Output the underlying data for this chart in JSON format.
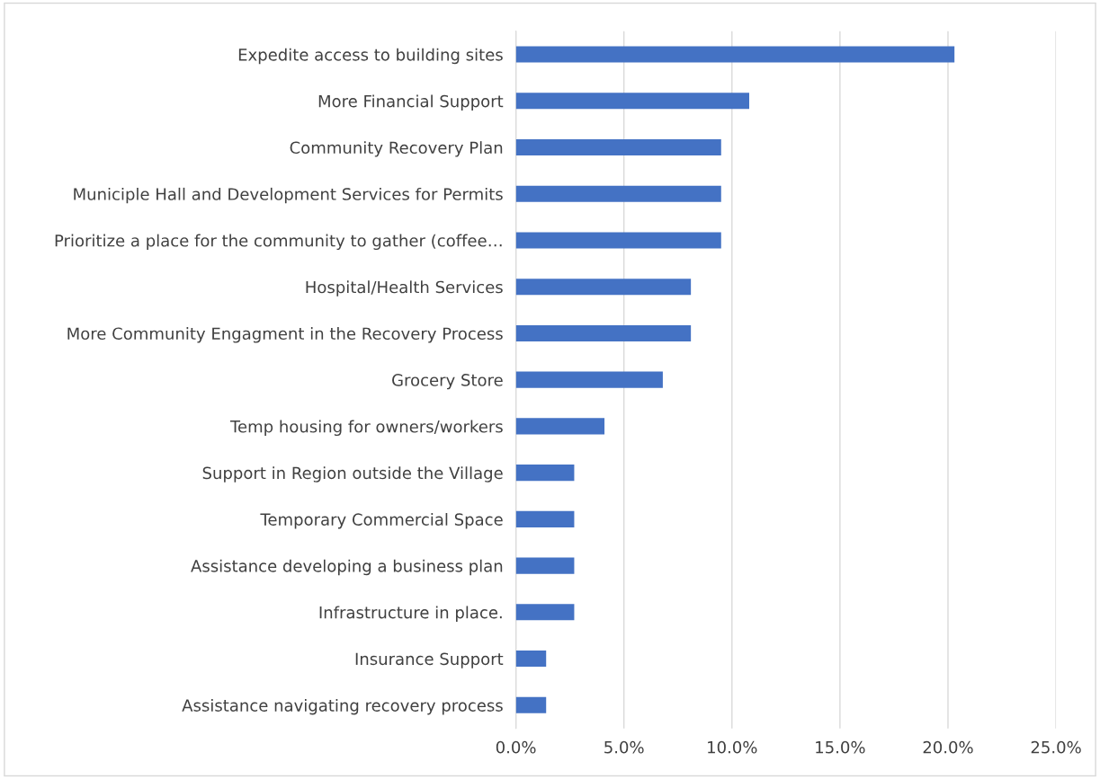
{
  "chart_data": {
    "type": "bar",
    "orientation": "horizontal",
    "categories": [
      "Expedite access to building sites",
      "More Financial Support",
      "Community Recovery Plan",
      "Municiple Hall and Development Services for Permits",
      "Prioritize a place for the community to gather (coffee…",
      "Hospital/Health Services",
      "More Community Engagment in the Recovery Process",
      "Grocery Store",
      "Temp housing for owners/workers",
      "Support in Region outside the Village",
      "Temporary Commercial Space",
      "Assistance developing a business plan",
      "Infrastructure in place.",
      "Insurance Support",
      "Assistance navigating recovery process"
    ],
    "values": [
      20.3,
      10.8,
      9.5,
      9.5,
      9.5,
      8.1,
      8.1,
      6.8,
      4.1,
      2.7,
      2.7,
      2.7,
      2.7,
      1.4,
      1.4
    ],
    "color": "#4472c4",
    "xlim": [
      0,
      25
    ],
    "xticks": [
      {
        "value": 0,
        "label": "0.0%"
      },
      {
        "value": 5,
        "label": "5.0%"
      },
      {
        "value": 10,
        "label": "10.0%"
      },
      {
        "value": 15,
        "label": "15.0%"
      },
      {
        "value": 20,
        "label": "20.0%"
      },
      {
        "value": 25,
        "label": "25.0%"
      }
    ],
    "grid": "x",
    "legend": false
  }
}
